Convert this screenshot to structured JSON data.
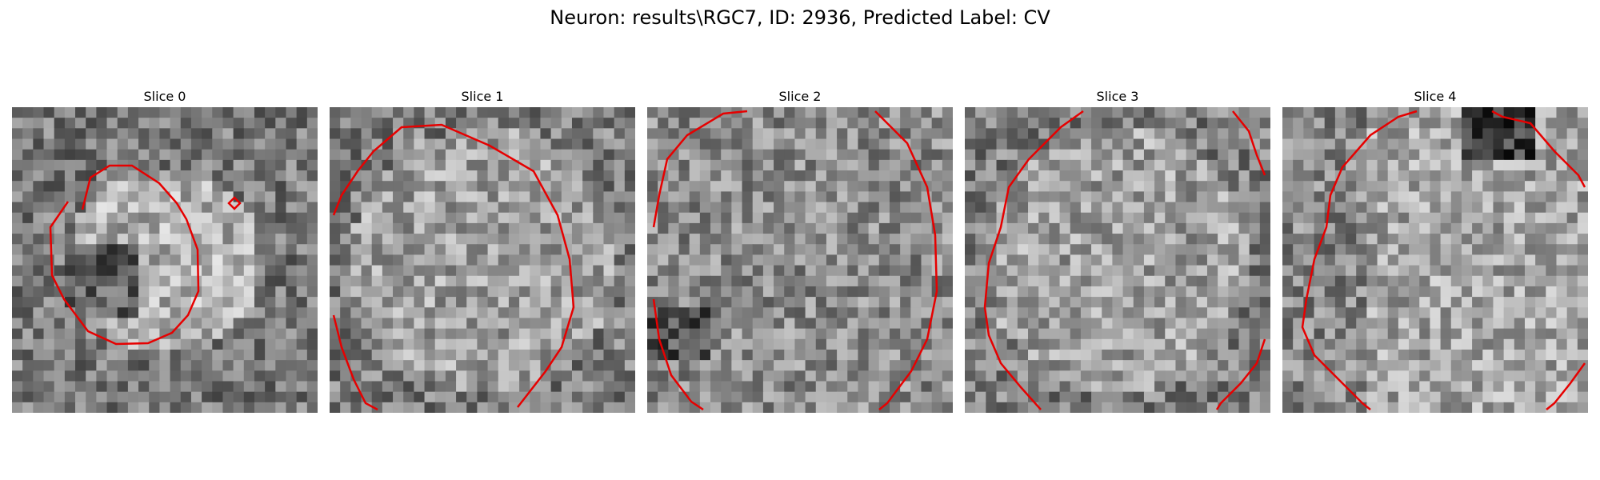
{
  "figure": {
    "title": "Neuron: results\\RGC7, ID: 2936, Predicted Label: CV"
  },
  "panels": [
    {
      "title": "Slice 0",
      "seed": 11,
      "blob": "bright-center-dark-left"
    },
    {
      "title": "Slice 1",
      "seed": 23,
      "blob": "uniform-light"
    },
    {
      "title": "Slice 2",
      "seed": 37,
      "blob": "uniform-mid"
    },
    {
      "title": "Slice 3",
      "seed": 51,
      "blob": "uniform-light"
    },
    {
      "title": "Slice 4",
      "seed": 67,
      "blob": "light-right-dark-top"
    }
  ],
  "colors": {
    "contour": "#e60000",
    "background": "#ffffff"
  }
}
